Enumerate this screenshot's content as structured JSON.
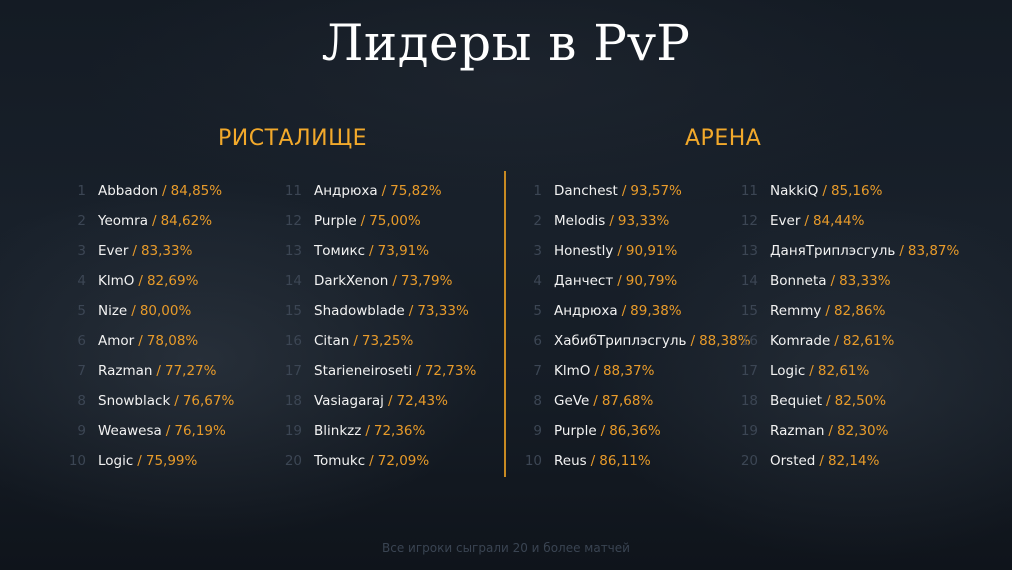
{
  "title": "Лидеры в PvP",
  "footer": "Все игроки сыграли 20 и более матчей",
  "separator": "/",
  "colors": {
    "accent": "#e89b2a",
    "title": "#ffffff",
    "name": "#f2f2f2",
    "rank": "#3c4654"
  },
  "sections": [
    {
      "title": "РИСТАЛИЩЕ",
      "columns": [
        [
          {
            "rank": "1",
            "name": "Abbadon",
            "value": "84,85%"
          },
          {
            "rank": "2",
            "name": "Yeomra",
            "value": "84,62%"
          },
          {
            "rank": "3",
            "name": "Ever",
            "value": "83,33%"
          },
          {
            "rank": "4",
            "name": "KlmO",
            "value": "82,69%"
          },
          {
            "rank": "5",
            "name": "Nize",
            "value": "80,00%"
          },
          {
            "rank": "6",
            "name": "Amor",
            "value": "78,08%"
          },
          {
            "rank": "7",
            "name": "Razman",
            "value": "77,27%"
          },
          {
            "rank": "8",
            "name": "Snowblack",
            "value": "76,67%"
          },
          {
            "rank": "9",
            "name": "Weawesa",
            "value": "76,19%"
          },
          {
            "rank": "10",
            "name": "Logic",
            "value": "75,99%"
          }
        ],
        [
          {
            "rank": "11",
            "name": "Андрюха",
            "value": "75,82%"
          },
          {
            "rank": "12",
            "name": "Purple",
            "value": "75,00%"
          },
          {
            "rank": "13",
            "name": "Томикс",
            "value": "73,91%"
          },
          {
            "rank": "14",
            "name": "DarkXenon",
            "value": "73,79%"
          },
          {
            "rank": "15",
            "name": "Shadowblade",
            "value": "73,33%"
          },
          {
            "rank": "16",
            "name": "Citan",
            "value": "73,25%"
          },
          {
            "rank": "17",
            "name": "Starieneiroseti",
            "value": "72,73%"
          },
          {
            "rank": "18",
            "name": "Vasiagaraj",
            "value": "72,43%"
          },
          {
            "rank": "19",
            "name": "Blinkzz",
            "value": "72,36%"
          },
          {
            "rank": "20",
            "name": "Tomukc",
            "value": "72,09%"
          }
        ]
      ]
    },
    {
      "title": "АРЕНА",
      "columns": [
        [
          {
            "rank": "1",
            "name": "Danchest",
            "value": "93,57%"
          },
          {
            "rank": "2",
            "name": "Melodis",
            "value": "93,33%"
          },
          {
            "rank": "3",
            "name": "Honestly",
            "value": "90,91%"
          },
          {
            "rank": "4",
            "name": "Данчест",
            "value": "90,79%"
          },
          {
            "rank": "5",
            "name": "Андрюха",
            "value": "89,38%"
          },
          {
            "rank": "6",
            "name": "ХабибТриплэсгуль",
            "value": "88,38%"
          },
          {
            "rank": "7",
            "name": "KlmO",
            "value": "88,37%"
          },
          {
            "rank": "8",
            "name": "GeVe",
            "value": "87,68%"
          },
          {
            "rank": "9",
            "name": "Purple",
            "value": "86,36%"
          },
          {
            "rank": "10",
            "name": "Reus",
            "value": "86,11%"
          }
        ],
        [
          {
            "rank": "11",
            "name": "NakkiQ",
            "value": "85,16%"
          },
          {
            "rank": "12",
            "name": "Ever",
            "value": "84,44%"
          },
          {
            "rank": "13",
            "name": "ДаняТриплэсгуль",
            "value": "83,87%"
          },
          {
            "rank": "14",
            "name": "Bonneta",
            "value": "83,33%"
          },
          {
            "rank": "15",
            "name": "Remmy",
            "value": "82,86%"
          },
          {
            "rank": "16",
            "name": "Komrade",
            "value": "82,61%"
          },
          {
            "rank": "17",
            "name": "Logic",
            "value": "82,61%"
          },
          {
            "rank": "18",
            "name": "Bequiet",
            "value": "82,50%"
          },
          {
            "rank": "19",
            "name": "Razman",
            "value": "82,30%"
          },
          {
            "rank": "20",
            "name": "Orsted",
            "value": "82,14%"
          }
        ]
      ]
    }
  ]
}
